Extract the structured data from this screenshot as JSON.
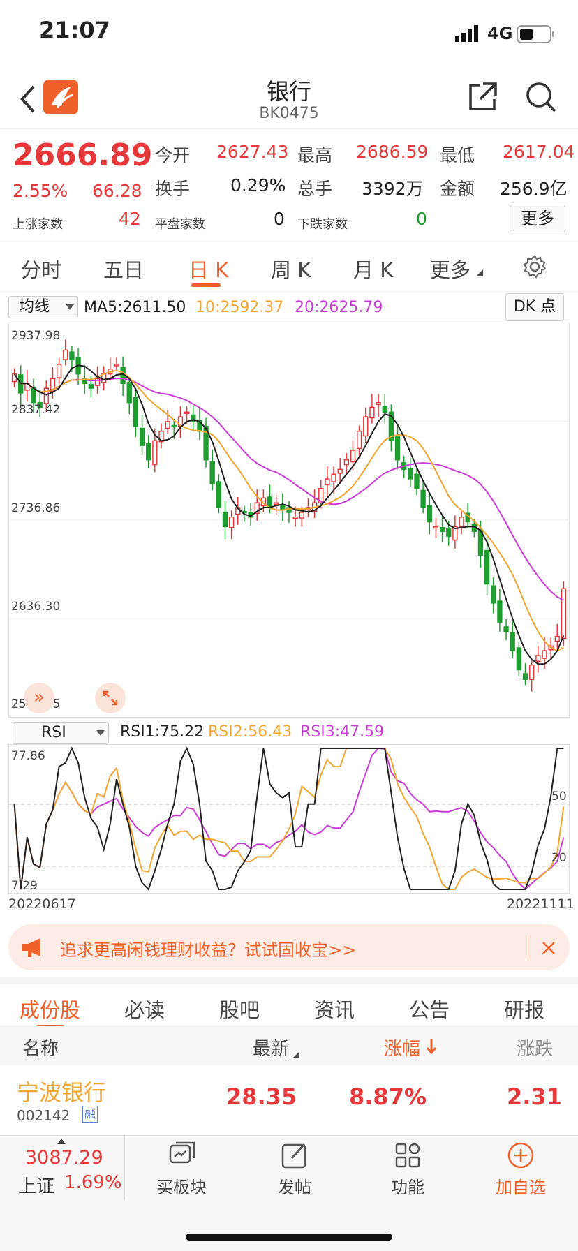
{
  "status_bar": {
    "time": "21:07",
    "network": "4G"
  },
  "header": {
    "title": "银行",
    "code": "BK0475"
  },
  "quote": {
    "price": "2666.89",
    "change_pct": "2.55%",
    "change": "66.28",
    "open_label": "今开",
    "open": "2627.43",
    "high_label": "最高",
    "high": "2686.59",
    "low_label": "最低",
    "low": "2617.04",
    "turnover_label": "换手",
    "turnover": "0.29%",
    "volume_label": "总手",
    "volume": "3392万",
    "amount_label": "金额",
    "amount": "256.9亿",
    "up_label": "上涨家数",
    "up": "42",
    "flat_label": "平盘家数",
    "flat": "0",
    "down_label": "下跌家数",
    "down": "0",
    "more_button": "更多"
  },
  "period_tabs": [
    {
      "label": "分时"
    },
    {
      "label": "五日"
    },
    {
      "label": "日 K",
      "active": true
    },
    {
      "label": "周 K"
    },
    {
      "label": "月 K"
    },
    {
      "label": "更多"
    }
  ],
  "ma_bar": {
    "selector": "均线",
    "ma5": "MA5:2611.50",
    "ma10": "10:2592.37",
    "ma20": "20:2625.79",
    "dk_button": "DK 点"
  },
  "price_axis": [
    "2937.98",
    "2837.42",
    "2736.86",
    "2636.30",
    "2535.75"
  ],
  "rsi_bar": {
    "selector": "RSI",
    "rsi1": "RSI1:75.22",
    "rsi2": "RSI2:56.43",
    "rsi3": "RSI3:47.59"
  },
  "rsi_axis": {
    "top": "77.86",
    "bottom": "7.29",
    "level50": "50",
    "level20": "20"
  },
  "date_axis": {
    "start": "20220617",
    "end": "20221111"
  },
  "colors": {
    "up": "#e5383b",
    "down": "#1f9e30",
    "ma5": "#222222",
    "ma10": "#f0a630",
    "ma20": "#c93bd6",
    "accent": "#f0602a"
  },
  "banner": {
    "text": "追求更高闲钱理财收益？试试固收宝>>"
  },
  "content_tabs": [
    {
      "label": "成份股",
      "active": true
    },
    {
      "label": "必读"
    },
    {
      "label": "股吧"
    },
    {
      "label": "资讯"
    },
    {
      "label": "公告"
    },
    {
      "label": "研报"
    }
  ],
  "table": {
    "headers": {
      "name": "名称",
      "latest": "最新",
      "change_pct": "涨幅",
      "change": "涨跌"
    },
    "rows": [
      {
        "name": "宁波银行",
        "code": "002142",
        "tag": "融",
        "latest": "28.35",
        "change_pct": "8.87%",
        "change": "2.31"
      }
    ]
  },
  "bottom_bar": {
    "index_value": "3087.29",
    "index_name": "上证",
    "index_change": "1.69%",
    "items": [
      {
        "label": "买板块"
      },
      {
        "label": "发帖"
      },
      {
        "label": "功能"
      },
      {
        "label": "加自选"
      }
    ]
  },
  "chart_data": {
    "type": "candlestick",
    "x_range": [
      "20220617",
      "20221111"
    ],
    "y_range": [
      2535.75,
      2937.98
    ],
    "ma": {
      "MA5": 2611.5,
      "MA10": 2592.37,
      "MA20": 2625.79
    },
    "closes": [
      2890,
      2870,
      2880,
      2860,
      2855,
      2875,
      2885,
      2900,
      2915,
      2905,
      2890,
      2880,
      2875,
      2885,
      2890,
      2895,
      2900,
      2880,
      2860,
      2835,
      2815,
      2800,
      2820,
      2830,
      2840,
      2835,
      2845,
      2850,
      2840,
      2830,
      2800,
      2775,
      2750,
      2730,
      2740,
      2750,
      2745,
      2740,
      2755,
      2760,
      2750,
      2755,
      2748,
      2745,
      2740,
      2745,
      2750,
      2755,
      2770,
      2780,
      2785,
      2790,
      2800,
      2810,
      2830,
      2845,
      2855,
      2860,
      2850,
      2820,
      2800,
      2790,
      2780,
      2770,
      2750,
      2735,
      2730,
      2725,
      2720,
      2730,
      2740,
      2735,
      2725,
      2700,
      2670,
      2650,
      2630,
      2620,
      2600,
      2580,
      2570,
      2585,
      2595,
      2600,
      2605,
      2615,
      2665
    ],
    "rsi": {
      "RSI1": 75.22,
      "RSI2": 56.43,
      "RSI3": 47.59,
      "y_range": [
        7.29,
        77.86
      ]
    }
  }
}
